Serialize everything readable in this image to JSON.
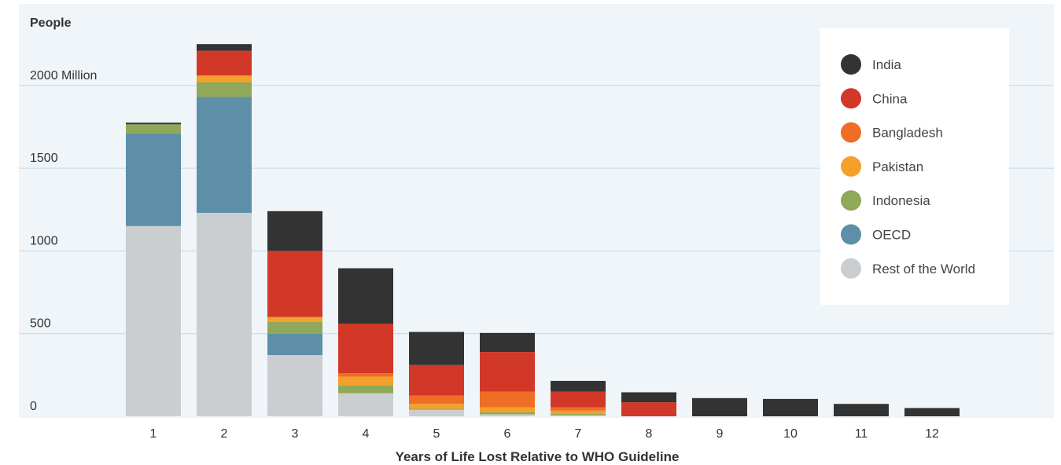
{
  "chart_data": {
    "type": "bar",
    "stacked": true,
    "ylabel": "People",
    "xlabel": "Years of Life Lost Relative to WHO Guideline",
    "ylim": [
      0,
      2400
    ],
    "yticks": [
      {
        "value": 0,
        "label": "0"
      },
      {
        "value": 500,
        "label": "500"
      },
      {
        "value": 1000,
        "label": "1000"
      },
      {
        "value": 1500,
        "label": "1500"
      },
      {
        "value": 2000,
        "label": "2000 Million"
      }
    ],
    "grid": true,
    "legend_position": "top-right",
    "categories": [
      "1",
      "2",
      "3",
      "4",
      "5",
      "6",
      "7",
      "8",
      "9",
      "10",
      "11",
      "12"
    ],
    "series": [
      {
        "name": "Rest of the World",
        "color": "#cbced1",
        "values": [
          1150,
          1230,
          370,
          140,
          40,
          12,
          6,
          0,
          0,
          0,
          0,
          0
        ]
      },
      {
        "name": "OECD",
        "color": "#5d90a8",
        "values": [
          560,
          700,
          130,
          0,
          0,
          0,
          0,
          0,
          0,
          0,
          0,
          0
        ]
      },
      {
        "name": "Indonesia",
        "color": "#8fa859",
        "values": [
          55,
          90,
          70,
          45,
          5,
          12,
          8,
          0,
          0,
          0,
          0,
          0
        ]
      },
      {
        "name": "Pakistan",
        "color": "#f5a02a",
        "values": [
          0,
          40,
          30,
          55,
          30,
          30,
          20,
          0,
          0,
          0,
          0,
          0
        ]
      },
      {
        "name": "Bangladesh",
        "color": "#ef6e26",
        "values": [
          0,
          0,
          0,
          20,
          50,
          95,
          20,
          0,
          0,
          0,
          0,
          0
        ]
      },
      {
        "name": "China",
        "color": "#d13828",
        "values": [
          0,
          150,
          400,
          300,
          185,
          240,
          95,
          85,
          0,
          0,
          0,
          0
        ]
      },
      {
        "name": "India",
        "color": "#333333",
        "values": [
          10,
          40,
          240,
          335,
          200,
          115,
          65,
          60,
          110,
          105,
          75,
          50
        ]
      }
    ]
  }
}
